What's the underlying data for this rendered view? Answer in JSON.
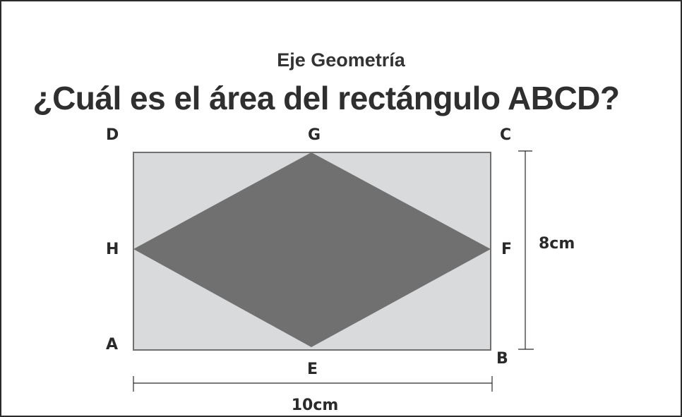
{
  "header": {
    "subject": "Eje Geometría",
    "question": "¿Cuál es el área del rectángulo ABCD?"
  },
  "figure": {
    "points": {
      "A": "A",
      "B": "B",
      "C": "C",
      "D": "D",
      "E": "E",
      "F": "F",
      "G": "G",
      "H": "H"
    },
    "width_label": "10cm",
    "height_label": "8cm",
    "colors": {
      "rectangle_fill": "#d9dadb",
      "rectangle_stroke": "#707070",
      "rhombus_fill": "#707070",
      "dimension_line": "#2a2a2a"
    }
  }
}
